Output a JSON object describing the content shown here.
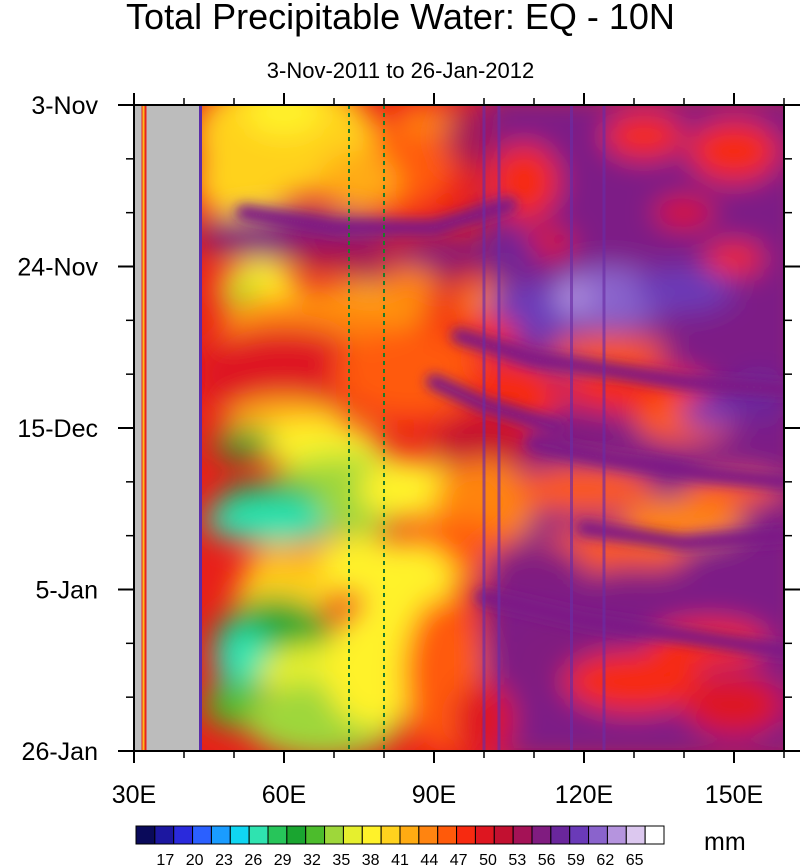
{
  "chart_data": {
    "type": "heatmap",
    "title": "Total Precipitable Water: EQ - 10N",
    "subtitle": "3-Nov-2011 to 26-Jan-2012",
    "x": {
      "label": "",
      "range": [
        30,
        160
      ],
      "ticks": [
        30,
        60,
        90,
        120,
        150
      ],
      "tick_labels": [
        "30E",
        "60E",
        "90E",
        "120E",
        "150E"
      ]
    },
    "y": {
      "label": "",
      "ticks": [
        "3-Nov",
        "24-Nov",
        "15-Dec",
        "5-Jan",
        "26-Jan"
      ],
      "tick_labels": [
        "3-Nov",
        "24-Nov",
        "15-Dec",
        "5-Jan",
        "26-Jan"
      ],
      "range_days": [
        0,
        84
      ]
    },
    "masked_region_lon": [
      32.5,
      43
    ],
    "reference_lines_lon": [
      73,
      80
    ],
    "colorbar": {
      "units": "mm",
      "labels": [
        17,
        20,
        23,
        26,
        29,
        32,
        35,
        38,
        41,
        44,
        47,
        50,
        53,
        56,
        59,
        62,
        65
      ],
      "colors": [
        "#0a0a5a",
        "#1c17a0",
        "#2a2adc",
        "#2b60ff",
        "#1a9cff",
        "#10d6f2",
        "#2fe3b0",
        "#27c55a",
        "#1aa530",
        "#4cbc2c",
        "#9ed73a",
        "#e6ef2e",
        "#fff22a",
        "#ffd21e",
        "#ffab12",
        "#ff8410",
        "#ff5a0a",
        "#f72a10",
        "#de1620",
        "#c21030",
        "#a41256",
        "#801c80",
        "#6a269c",
        "#6a3ab8",
        "#8a63cc",
        "#b594de",
        "#dcc8ef",
        "#ffffff"
      ]
    },
    "grid": false,
    "legend": "colorbar-bottom"
  }
}
